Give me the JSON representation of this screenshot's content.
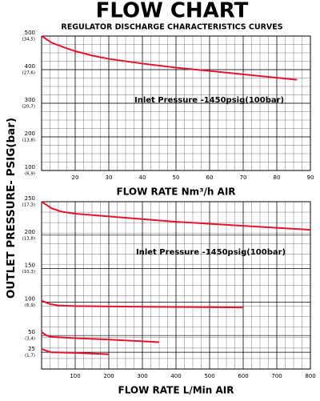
{
  "title": "FLOW CHART",
  "subtitle": "REGULATOR DISCHARGE CHARACTERISTICS CURVES",
  "ylabel": "OUTLET PRESSURE- PSIG(bar)",
  "chart_data": [
    {
      "type": "line",
      "xlabel": "FLOW RATE  Nm³/h AIR",
      "annotation": "Inlet Pressure -1450psig(100bar)",
      "xlim": [
        10,
        90
      ],
      "xticks": [
        20,
        30,
        40,
        50,
        60,
        70,
        80,
        90
      ],
      "ylim": [
        100,
        500
      ],
      "yticks": [
        500,
        400,
        300,
        200,
        100
      ],
      "ytick_bar_labels": [
        "(34,5)",
        "(27,6)",
        "(20,7)",
        "(13,8)",
        "(6,9)"
      ],
      "grid": true,
      "series": [
        {
          "color": "#e5132b",
          "x": [
            10,
            13,
            17,
            20,
            25,
            30,
            40,
            50,
            60,
            70,
            80,
            86
          ],
          "values": [
            500,
            480,
            465,
            455,
            442,
            432,
            418,
            406,
            396,
            386,
            376,
            370
          ]
        }
      ]
    },
    {
      "type": "line",
      "xlabel": "FLOW RATE  L/Min AIR",
      "annotation": "Inlet Pressure -1450psig(100bar)",
      "xlim": [
        0,
        800
      ],
      "xticks": [
        100,
        200,
        300,
        400,
        500,
        600,
        700,
        800
      ],
      "ylim": [
        0,
        250
      ],
      "yticks": [
        250,
        200,
        150,
        100,
        50,
        25
      ],
      "ytick_bar_labels": [
        "(17,3)",
        "(13,8)",
        "(10,3)",
        "(6,9)",
        "(3,4)",
        "(1,7)"
      ],
      "grid": true,
      "series": [
        {
          "color": "#e5132b",
          "x": [
            0,
            30,
            60,
            100,
            200,
            300,
            400,
            500,
            600,
            700,
            800
          ],
          "values": [
            250,
            240,
            235,
            232,
            228,
            224,
            220,
            217,
            214,
            211,
            208
          ]
        },
        {
          "color": "#e5132b",
          "x": [
            0,
            25,
            50,
            100,
            300,
            600
          ],
          "values": [
            102,
            97,
            95,
            94,
            93,
            92
          ]
        },
        {
          "color": "#e5132b",
          "x": [
            0,
            15,
            30,
            100,
            200,
            350
          ],
          "values": [
            55,
            50,
            48,
            46,
            44,
            40
          ]
        },
        {
          "color": "#e5132b",
          "x": [
            0,
            15,
            30,
            100,
            200
          ],
          "values": [
            30,
            27,
            25,
            24,
            22
          ]
        }
      ]
    }
  ]
}
